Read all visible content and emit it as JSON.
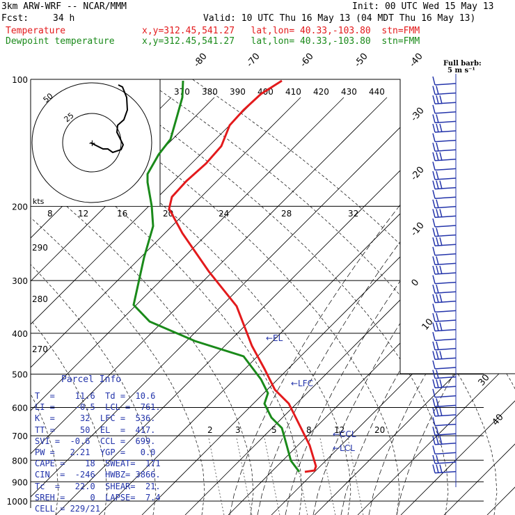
{
  "header": {
    "model": "3km ARW-WRF -- NCAR/MMM",
    "init": "Init: 00 UTC Wed 15 May 13",
    "fcst_label": "Fcst:",
    "fcst_value": "34 h",
    "valid": "Valid: 10 UTC Thu 16 May 13 (04 MDT Thu 16 May 13)",
    "temp_label": "Temperature",
    "dew_label": "Dewpoint temperature",
    "temp_info": "x,y=312.45,541.27   lat,lon= 40.33,-103.80  stn=FMM",
    "dew_info": "x,y=312.45,541.27   lat,lon= 40.33,-103.80  stn=FMM",
    "barb_legend_1": "Full barb:",
    "barb_legend_2": "5 m s⁻¹"
  },
  "colors": {
    "temperature": "#e31a1c",
    "dewpoint": "#1a8a1a",
    "parcel_text": "#2233aa",
    "barb": "#2233aa"
  },
  "chart_data": {
    "type": "line",
    "title": "Skew-T log-P sounding",
    "pressure_levels": [
      100,
      200,
      300,
      400,
      500,
      600,
      700,
      800,
      900,
      1000
    ],
    "isotherm_labels": [
      "-80",
      "-70",
      "-60",
      "-50",
      "-40",
      "-30",
      "-20",
      "-10",
      "0",
      "10",
      "30",
      "40"
    ],
    "theta_labels": [
      "370",
      "380",
      "390",
      "400",
      "410",
      "420",
      "430",
      "440"
    ],
    "theta_left_labels": [
      "290",
      "280",
      "270"
    ],
    "mixing_ratio_labels": [
      "2",
      "3",
      "5",
      "8",
      "12",
      "20"
    ],
    "series": [
      {
        "name": "Temperature",
        "points": [
          [
            100,
            -55
          ],
          [
            150,
            -52
          ],
          [
            200,
            -54
          ],
          [
            300,
            -40
          ],
          [
            400,
            -27
          ],
          [
            500,
            -11
          ],
          [
            550,
            -5
          ],
          [
            600,
            -1
          ],
          [
            700,
            5
          ],
          [
            800,
            8
          ],
          [
            850,
            10
          ],
          [
            870,
            7
          ]
        ]
      },
      {
        "name": "Dewpoint temperature",
        "points": [
          [
            100,
            -68
          ],
          [
            150,
            -72
          ],
          [
            200,
            -60
          ],
          [
            300,
            -61
          ],
          [
            350,
            -62
          ],
          [
            400,
            -50
          ],
          [
            470,
            -32
          ],
          [
            500,
            -14
          ],
          [
            550,
            -8
          ],
          [
            600,
            -9
          ],
          [
            700,
            -3
          ],
          [
            800,
            2
          ],
          [
            850,
            3
          ],
          [
            870,
            5
          ]
        ]
      }
    ],
    "markers": [
      {
        "label": "EL",
        "pressure": 417
      },
      {
        "label": "LFC",
        "pressure": 536
      },
      {
        "label": "CCL",
        "pressure": 699
      },
      {
        "label": "LCL",
        "pressure": 761
      }
    ],
    "hodograph": {
      "ring_labels": [
        "25",
        "50"
      ],
      "speed_label": "kts",
      "scale_labels": [
        "8",
        "12",
        "16",
        "20",
        "24",
        "28",
        "32"
      ]
    },
    "wind_barbs_count": 42
  },
  "parcel_info": {
    "title": "Parcel Info",
    "rows": [
      "T  =    11.6  Td =  10.6",
      "LI =    -0.5  LCL =  761.",
      "K  =     32  LFC =  536.",
      "TT =     50  EL  =  417.",
      "SVI =  -0.6  CCL =  699.",
      "PW =   2.21  YGP =   0.0",
      "CAPE =    18  SWEAT=  171",
      "CIN  =  -246  HWBZ= 3866.",
      "Tc  =   22.0  SHEAR=  21.",
      "SREH =     0  LAPSE=  7.4",
      "CELL = 229/21"
    ]
  }
}
